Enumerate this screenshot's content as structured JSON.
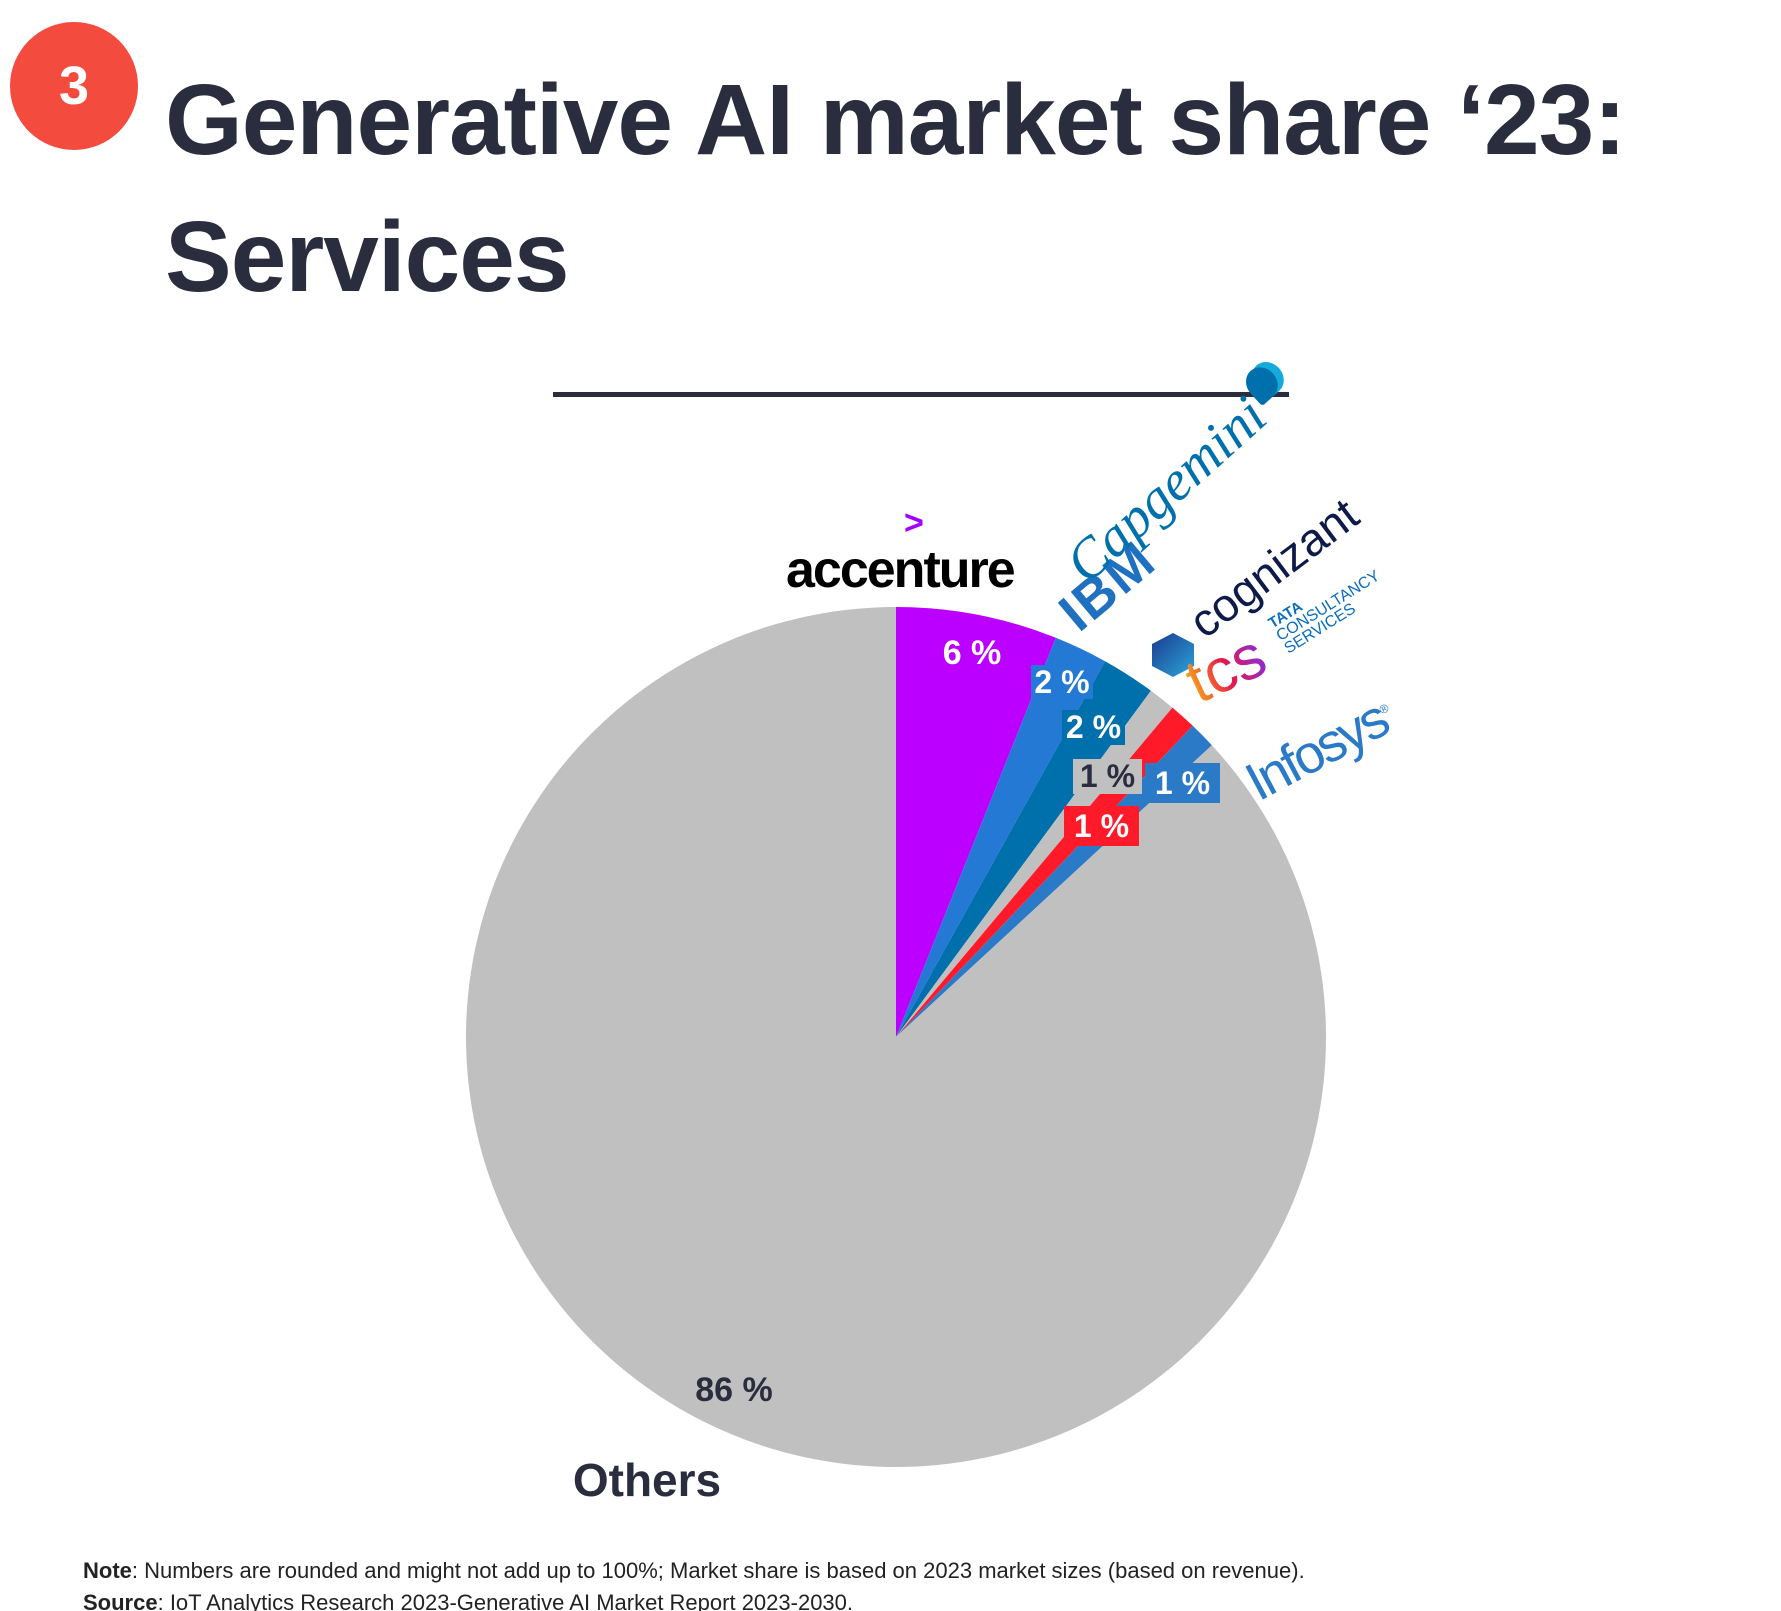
{
  "badge": "3",
  "title_line1": "Generative AI market share ‘23:",
  "title_line2": "Services",
  "logos": {
    "accenture": "accenture",
    "accenture_mark": ">",
    "ibm": "IBM",
    "capgemini": "Capgemini",
    "cognizant": "cognizant",
    "tcs": "tcs",
    "tcs_sub1": "TATA",
    "tcs_sub2": "CONSULTANCY",
    "tcs_sub3": "SERVICES",
    "infosys": "Infosys",
    "infosys_reg": "®"
  },
  "chart_data": {
    "type": "pie",
    "title": "Generative AI market share ‘23: Services",
    "start": "top, clockwise",
    "slices": [
      {
        "name": "Accenture",
        "value": 6,
        "label": "6 %",
        "color": "#bb00ff"
      },
      {
        "name": "IBM",
        "value": 2,
        "label": "2 %",
        "color": "#2479d4"
      },
      {
        "name": "Capgemini",
        "value": 2,
        "label": "2 %",
        "color": "#0070ad"
      },
      {
        "name": "Cognizant",
        "value": 1,
        "label": "1 %",
        "color": "#c0c0c0"
      },
      {
        "name": "TCS",
        "value": 1,
        "label": "1 %",
        "color": "#ff1a2a"
      },
      {
        "name": "Infosys",
        "value": 1,
        "label": "1 %",
        "color": "#2a7ac8"
      },
      {
        "name": "Others",
        "value": 86,
        "label": "86 %",
        "color": "#c0c0c0"
      }
    ],
    "others_label": "Others"
  },
  "note_label": "Note",
  "note_text": ": Numbers are rounded and might not add up to 100%; Market share is based on 2023 market sizes (based on revenue).",
  "source_label": "Source",
  "source_text": ": IoT Analytics Research 2023-Generative AI Market Report 2023-2030."
}
